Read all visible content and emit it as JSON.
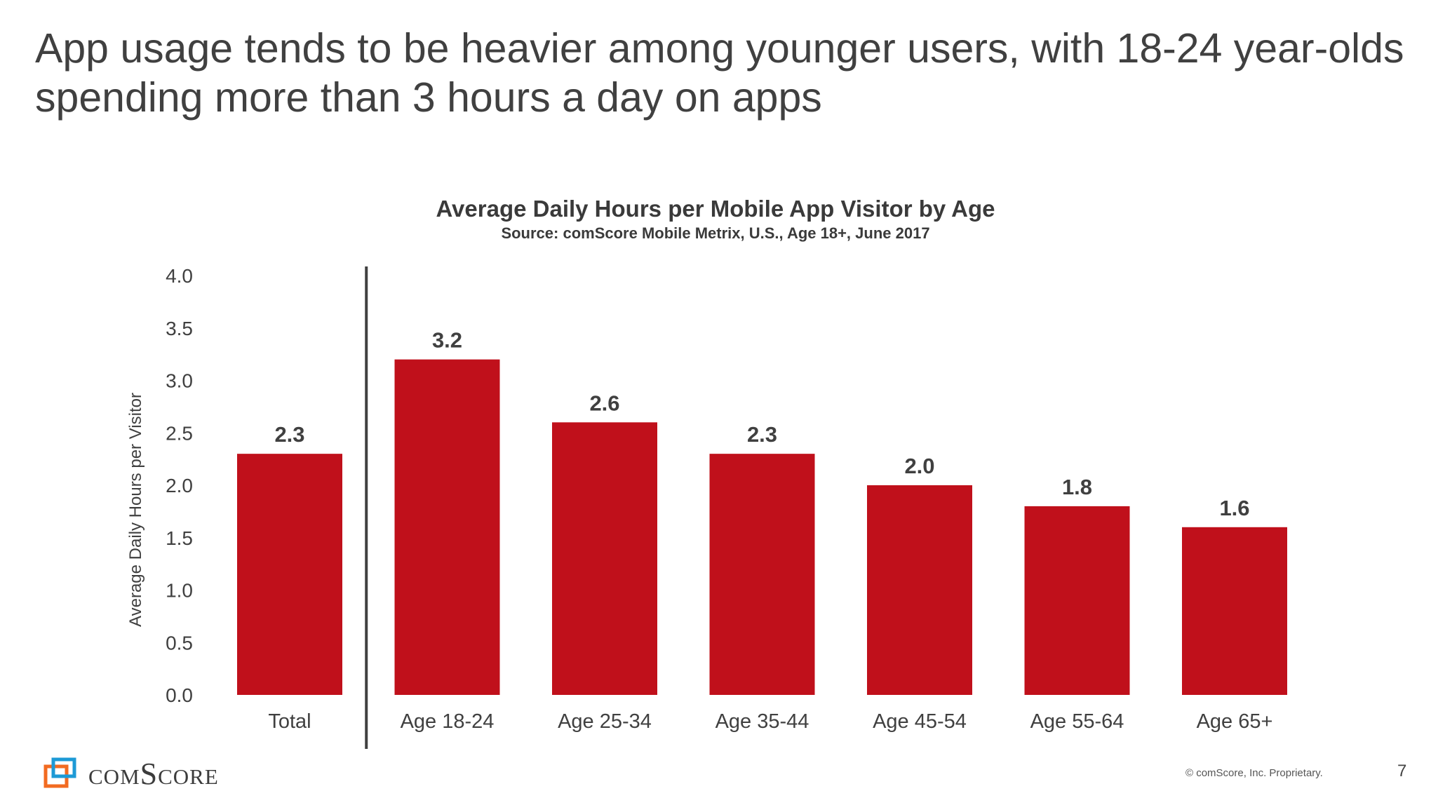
{
  "slide": {
    "headline": "App usage tends to be heavier among younger users, with 18-24 year-olds spending more than 3 hours a day on apps",
    "copyright": "© comScore, Inc. Proprietary.",
    "page_number": "7",
    "logo_text": "comScore"
  },
  "colors": {
    "bar": "#c0101b",
    "text": "#404040",
    "divider": "#404040",
    "logo_orange": "#f26b21",
    "logo_blue": "#1d9ad6"
  },
  "chart_data": {
    "type": "bar",
    "title": "Average Daily Hours per Mobile App Visitor by Age",
    "subtitle": "Source: comScore Mobile Metrix, U.S., Age 18+, June 2017",
    "xlabel": "",
    "ylabel": "Average Daily Hours per Visitor",
    "ylim": [
      0,
      4.0
    ],
    "yticks": [
      "0.0",
      "0.5",
      "1.0",
      "1.5",
      "2.0",
      "2.5",
      "3.0",
      "3.5",
      "4.0"
    ],
    "categories": [
      "Total",
      "Age 18-24",
      "Age 25-34",
      "Age 35-44",
      "Age 45-54",
      "Age 55-64",
      "Age 65+"
    ],
    "values": [
      2.3,
      3.2,
      2.6,
      2.3,
      2.0,
      1.8,
      1.6
    ],
    "value_labels": [
      "2.3",
      "3.2",
      "2.6",
      "2.3",
      "2.0",
      "1.8",
      "1.6"
    ],
    "grid": false,
    "divider_after": "Total"
  }
}
